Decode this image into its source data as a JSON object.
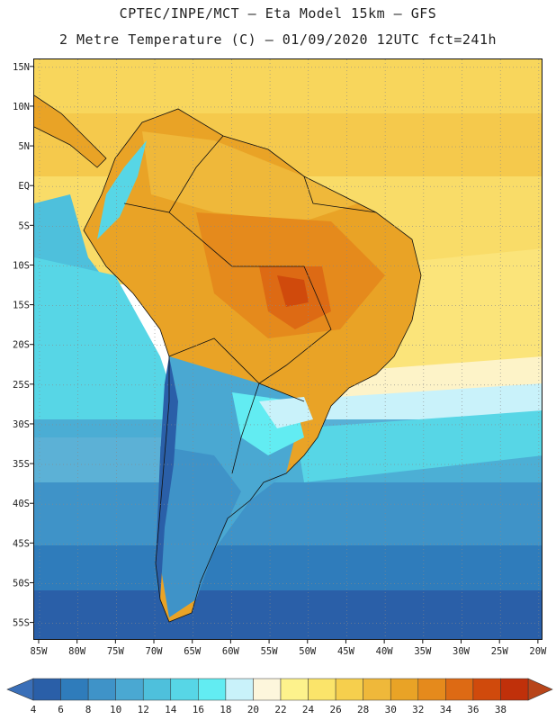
{
  "header": {
    "line1": "CPTEC/INPE/MCT –  Eta Model 15km – GFS",
    "line2": "2 Metre Temperature (C) – 01/09/2020 12UTC fct=241h"
  },
  "map": {
    "lat_labels": [
      "15N",
      "10N",
      "5N",
      "EQ",
      "5S",
      "10S",
      "15S",
      "20S",
      "25S",
      "30S",
      "35S",
      "40S",
      "45S",
      "50S",
      "55S"
    ],
    "lon_labels": [
      "85W",
      "80W",
      "75W",
      "70W",
      "65W",
      "60W",
      "55W",
      "50W",
      "45W",
      "40W",
      "35W",
      "30W",
      "25W",
      "20W"
    ]
  },
  "colorbar": {
    "labels": [
      "4",
      "6",
      "8",
      "10",
      "12",
      "14",
      "16",
      "18",
      "20",
      "22",
      "24",
      "26",
      "28",
      "30",
      "32",
      "34",
      "36",
      "38"
    ],
    "colors": [
      "#2a5fa8",
      "#2f7cbb",
      "#3f93c8",
      "#4aa8d2",
      "#4ec0dc",
      "#57d6e6",
      "#62ecf2",
      "#c9f2fa",
      "#fdf6dc",
      "#fdf28c",
      "#fbe46a",
      "#f6cf4d",
      "#efb83a",
      "#e9a326",
      "#e58a1c",
      "#dd6a14",
      "#d04a0c",
      "#c0300a"
    ],
    "below_color": "#3a6fb8",
    "above_color": "#b8451a"
  }
}
